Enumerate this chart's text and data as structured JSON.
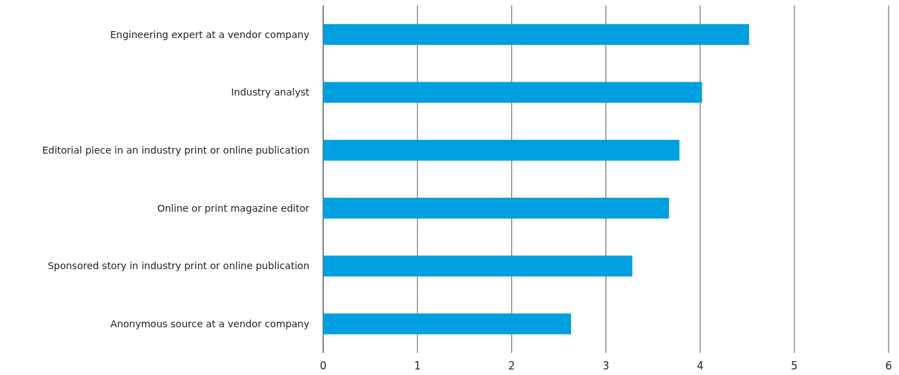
{
  "chart_data": {
    "type": "bar",
    "orientation": "horizontal",
    "categories": [
      "Engineering expert at a vendor company",
      "Industry analyst",
      "Editorial piece in an industry print or online publication",
      "Online or print magazine editor",
      "Sponsored story in industry print or online publication",
      "Anonymous source at a vendor company"
    ],
    "values": [
      4.52,
      4.02,
      3.78,
      3.67,
      3.28,
      2.63
    ],
    "color": "#009fdf",
    "xlim": [
      0,
      6
    ],
    "xticks": [
      0,
      1,
      2,
      3,
      4,
      5,
      6
    ],
    "grid": "x"
  }
}
